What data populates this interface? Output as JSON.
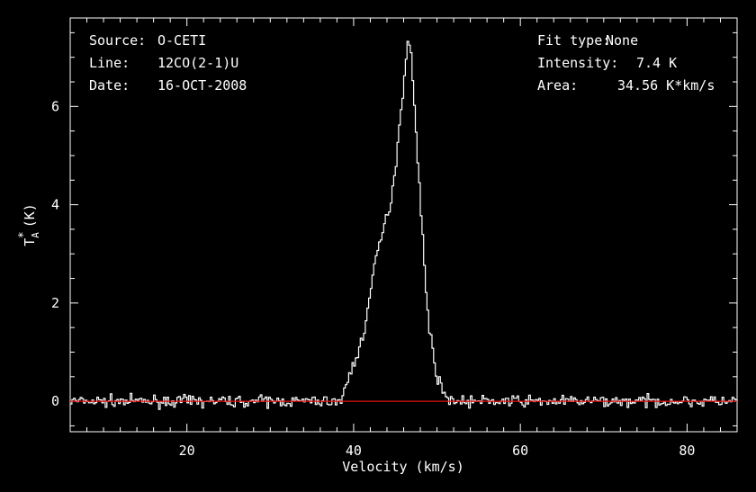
{
  "info_left": {
    "source_key": "Source:",
    "source_val": "O-CETI",
    "line_key": "Line:",
    "line_val": "12CO(2-1)U",
    "date_key": "Date:",
    "date_val": "16-OCT-2008"
  },
  "info_right": {
    "fit_key": "Fit type:",
    "fit_val": "None",
    "intensity_key": "Intensity:",
    "intensity_val": "7.4 K",
    "area_key": "Area:",
    "area_val": "34.56 K*km/s"
  },
  "chart_data": {
    "type": "line",
    "xlabel": "Velocity (km/s)",
    "ylabel": "Tₐ* (K)",
    "ylabel_main": "T",
    "ylabel_sub": "A",
    "ylabel_sup": "*",
    "ylabel_unit": "(K)",
    "xlim": [
      6,
      86
    ],
    "ylim": [
      -0.62,
      7.8
    ],
    "xticks": [
      20,
      40,
      60,
      80
    ],
    "yticks": [
      0,
      2,
      4,
      6
    ],
    "grid": false,
    "series": [
      {
        "line_style": "steps",
        "color": "#ffffff",
        "x": [
          38.5,
          39,
          39.5,
          40,
          40.5,
          41,
          41.5,
          42,
          42.5,
          43,
          43.5,
          44,
          44.5,
          45,
          45.5,
          46,
          46.3,
          46.5,
          46.8,
          47,
          47.5,
          48,
          48.5,
          49,
          49.5,
          50,
          50.5,
          51,
          51.5,
          52,
          52.5,
          53
        ],
        "y": [
          0.05,
          0.3,
          0.6,
          0.8,
          1.0,
          1.3,
          1.8,
          2.3,
          2.8,
          3.2,
          3.5,
          3.8,
          4.2,
          4.9,
          5.8,
          6.6,
          7.2,
          7.4,
          7.2,
          6.5,
          5.2,
          3.8,
          2.5,
          1.5,
          0.9,
          0.45,
          0.25,
          0.1,
          0.05,
          0.02,
          0.0,
          -0.05
        ]
      },
      {
        "line_style": "straight",
        "color": "#e01010",
        "x": [
          6,
          86
        ],
        "y": [
          0,
          0
        ]
      }
    ],
    "noise_sigma": 0.08
  }
}
